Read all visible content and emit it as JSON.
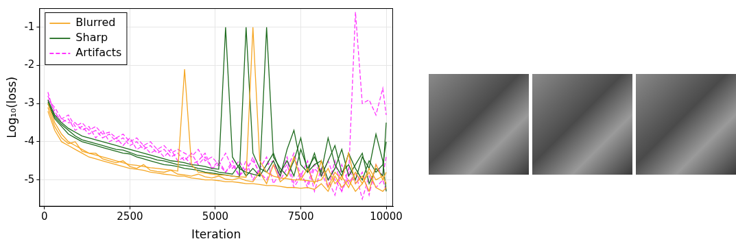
{
  "chart_data": {
    "type": "line",
    "xlabel": "Iteration",
    "ylabel": "Log₁₀(loss)",
    "x": [
      100,
      300,
      500,
      700,
      900,
      1100,
      1300,
      1500,
      1700,
      1900,
      2100,
      2300,
      2500,
      2700,
      2900,
      3100,
      3300,
      3500,
      3700,
      3900,
      4100,
      4300,
      4500,
      4700,
      4900,
      5100,
      5300,
      5500,
      5700,
      5900,
      6100,
      6300,
      6500,
      6700,
      6900,
      7100,
      7300,
      7500,
      7700,
      7900,
      8100,
      8300,
      8500,
      8700,
      8900,
      9100,
      9300,
      9500,
      9700,
      9900,
      10000
    ],
    "xlim": [
      -150,
      10200
    ],
    "xticks": [
      0,
      2500,
      5000,
      7500,
      10000
    ],
    "ylim": [
      -5.7,
      -0.5
    ],
    "yticks": [
      -5,
      -4,
      -3,
      -2,
      -1
    ],
    "grid": true,
    "legend": "top-left",
    "series": [
      {
        "name": "Blurred",
        "color": "#f5a623",
        "line_style": "solid",
        "values": [
          [
            -3.0,
            -3.5,
            -3.8,
            -4.0,
            -4.1,
            -4.2,
            -4.3,
            -4.35,
            -4.4,
            -4.45,
            -4.5,
            -4.55,
            -4.6,
            -4.62,
            -4.65,
            -4.68,
            -4.7,
            -4.72,
            -4.74,
            -4.77,
            -2.1,
            -4.6,
            -4.8,
            -4.82,
            -4.85,
            -4.87,
            -4.88,
            -4.9,
            -4.92,
            -4.93,
            -1.0,
            -4.5,
            -4.8,
            -4.9,
            -4.95,
            -4.97,
            -5.0,
            -5.0,
            -5.02,
            -5.05,
            -5.0,
            -4.7,
            -5.1,
            -4.9,
            -5.2,
            -4.8,
            -5.1,
            -4.7,
            -5.0,
            -4.9,
            -5.1
          ],
          [
            -3.1,
            -3.6,
            -3.9,
            -4.05,
            -4.0,
            -4.25,
            -4.3,
            -4.3,
            -4.45,
            -4.5,
            -4.55,
            -4.5,
            -4.65,
            -4.7,
            -4.6,
            -4.75,
            -4.78,
            -4.8,
            -4.75,
            -4.85,
            -4.87,
            -4.9,
            -4.85,
            -4.92,
            -4.95,
            -4.9,
            -4.98,
            -5.0,
            -4.95,
            -5.02,
            -5.05,
            -4.8,
            -5.1,
            -4.6,
            -5.05,
            -4.9,
            -4.4,
            -5.0,
            -4.7,
            -5.1,
            -4.5,
            -5.2,
            -4.8,
            -5.0,
            -4.3,
            -5.1,
            -4.9,
            -5.3,
            -4.6,
            -5.0,
            -4.8
          ],
          [
            -3.2,
            -3.7,
            -4.0,
            -4.1,
            -4.2,
            -4.3,
            -4.4,
            -4.45,
            -4.5,
            -4.55,
            -4.6,
            -4.65,
            -4.7,
            -4.72,
            -4.75,
            -4.8,
            -4.82,
            -4.85,
            -4.87,
            -4.9,
            -4.9,
            -4.95,
            -4.97,
            -5.0,
            -5.0,
            -5.02,
            -5.05,
            -5.05,
            -5.07,
            -5.1,
            -5.1,
            -5.12,
            -5.15,
            -5.15,
            -5.17,
            -5.2,
            -5.2,
            -5.22,
            -5.2,
            -5.25,
            -5.1,
            -5.3,
            -4.9,
            -5.2,
            -5.0,
            -5.3,
            -5.1,
            -4.8,
            -5.2,
            -5.3,
            -5.2
          ]
        ]
      },
      {
        "name": "Sharp",
        "color": "#1e6b1e",
        "line_style": "solid",
        "values": [
          [
            -2.9,
            -3.3,
            -3.5,
            -3.65,
            -3.75,
            -3.85,
            -3.9,
            -3.95,
            -4.0,
            -4.05,
            -4.1,
            -4.15,
            -4.2,
            -4.25,
            -4.3,
            -4.35,
            -4.4,
            -4.45,
            -4.5,
            -4.52,
            -4.55,
            -4.6,
            -4.62,
            -4.65,
            -4.7,
            -4.72,
            -1.0,
            -4.4,
            -4.7,
            -4.8,
            -4.85,
            -4.9,
            -4.6,
            -4.3,
            -4.8,
            -4.5,
            -4.9,
            -4.2,
            -4.7,
            -4.4,
            -4.8,
            -3.9,
            -4.6,
            -4.9,
            -4.3,
            -4.7,
            -5.0,
            -4.5,
            -4.8,
            -4.6,
            -4.0
          ],
          [
            -3.0,
            -3.4,
            -3.6,
            -3.8,
            -3.9,
            -4.0,
            -4.05,
            -4.1,
            -4.15,
            -4.2,
            -4.25,
            -4.3,
            -4.32,
            -4.4,
            -4.45,
            -4.5,
            -4.55,
            -4.6,
            -4.62,
            -4.65,
            -4.7,
            -4.72,
            -4.75,
            -4.8,
            -4.82,
            -4.85,
            -4.87,
            -4.9,
            -4.92,
            -1.0,
            -4.3,
            -4.7,
            -4.8,
            -4.5,
            -4.9,
            -4.2,
            -3.7,
            -4.6,
            -4.8,
            -4.3,
            -4.9,
            -4.5,
            -4.1,
            -4.8,
            -4.6,
            -5.0,
            -4.4,
            -4.7,
            -3.8,
            -4.5,
            -5.3
          ],
          [
            -2.95,
            -3.35,
            -3.55,
            -3.7,
            -3.85,
            -3.95,
            -4.0,
            -4.05,
            -4.1,
            -4.15,
            -4.2,
            -4.22,
            -4.28,
            -4.35,
            -4.38,
            -4.42,
            -4.48,
            -4.5,
            -4.55,
            -4.6,
            -4.62,
            -4.65,
            -4.7,
            -4.72,
            -4.75,
            -4.8,
            -4.82,
            -4.85,
            -4.6,
            -4.9,
            -4.7,
            -4.9,
            -1.0,
            -4.4,
            -4.7,
            -4.9,
            -4.5,
            -3.9,
            -4.8,
            -4.6,
            -4.5,
            -5.0,
            -4.7,
            -4.2,
            -4.9,
            -4.6,
            -4.3,
            -5.1,
            -4.7,
            -4.9,
            -3.5
          ]
        ]
      },
      {
        "name": "Artifacts",
        "color": "#ff33ff",
        "line_style": "dashed",
        "values": [
          [
            -2.7,
            -3.3,
            -3.4,
            -3.3,
            -3.6,
            -3.5,
            -3.7,
            -3.6,
            -3.8,
            -3.75,
            -3.9,
            -3.8,
            -4.0,
            -3.9,
            -4.1,
            -4.0,
            -4.2,
            -4.1,
            -4.3,
            -4.2,
            -4.3,
            -4.4,
            -4.2,
            -4.5,
            -4.4,
            -4.6,
            -4.3,
            -4.7,
            -4.5,
            -4.8,
            -4.4,
            -4.9,
            -4.6,
            -4.5,
            -5.0,
            -4.7,
            -4.3,
            -4.9,
            -5.1,
            -4.6,
            -4.8,
            -5.2,
            -4.5,
            -5.3,
            -4.9,
            -0.6,
            -3.0,
            -2.9,
            -3.3,
            -2.6,
            -3.3
          ],
          [
            -2.8,
            -3.2,
            -3.5,
            -3.4,
            -3.7,
            -3.6,
            -3.8,
            -3.7,
            -3.9,
            -3.8,
            -4.0,
            -3.9,
            -4.1,
            -4.0,
            -4.2,
            -4.1,
            -4.3,
            -4.2,
            -4.4,
            -4.3,
            -4.5,
            -4.3,
            -4.6,
            -4.4,
            -4.7,
            -4.5,
            -4.8,
            -4.6,
            -4.9,
            -4.5,
            -5.0,
            -4.7,
            -4.4,
            -5.1,
            -4.8,
            -4.6,
            -5.2,
            -4.9,
            -4.5,
            -5.3,
            -4.7,
            -5.0,
            -5.4,
            -4.6,
            -5.1,
            -4.8,
            -5.5,
            -4.9,
            -5.2,
            -5.0,
            -5.3
          ],
          [
            -2.9,
            -3.1,
            -3.4,
            -3.5,
            -3.5,
            -3.7,
            -3.6,
            -3.9,
            -3.7,
            -4.0,
            -3.9,
            -4.1,
            -3.9,
            -4.2,
            -4.1,
            -4.3,
            -4.2,
            -4.4,
            -4.2,
            -4.5,
            -4.4,
            -4.6,
            -4.5,
            -4.3,
            -4.7,
            -4.6,
            -4.8,
            -4.5,
            -4.9,
            -4.7,
            -4.5,
            -4.8,
            -5.0,
            -4.6,
            -4.9,
            -4.4,
            -5.1,
            -4.8,
            -5.2,
            -4.7,
            -4.9,
            -4.5,
            -5.0,
            -5.3,
            -4.7,
            -5.1,
            -4.8,
            -5.4,
            -4.6,
            -4.9,
            -4.4
          ]
        ]
      }
    ]
  }
}
